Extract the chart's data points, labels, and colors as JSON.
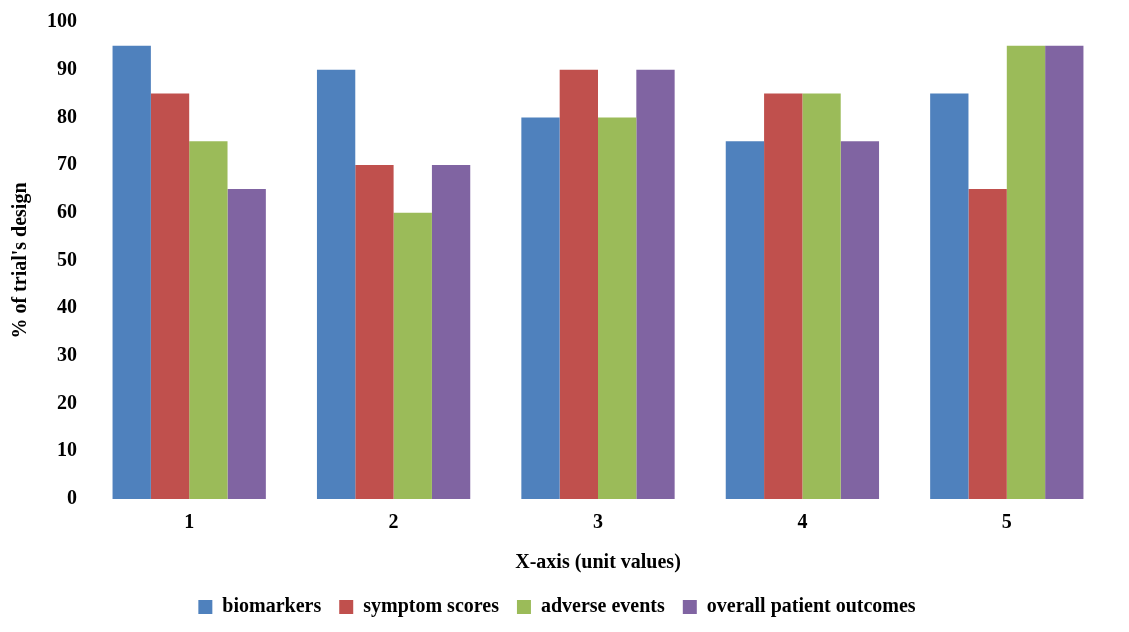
{
  "chart_data": {
    "type": "bar",
    "xlabel": "X-axis (unit values)",
    "ylabel": "% of trial's design",
    "categories": [
      "1",
      "2",
      "3",
      "4",
      "5"
    ],
    "series": [
      {
        "name": "biomarkers",
        "color": "#4f81bd",
        "values": [
          95,
          90,
          80,
          75,
          85
        ]
      },
      {
        "name": "symptom scores",
        "color": "#c0504d",
        "values": [
          85,
          70,
          90,
          85,
          65
        ]
      },
      {
        "name": "adverse events",
        "color": "#9bbb59",
        "values": [
          75,
          60,
          80,
          85,
          95
        ]
      },
      {
        "name": "overall patient outcomes",
        "color": "#8064a2",
        "values": [
          65,
          70,
          90,
          75,
          95
        ]
      }
    ],
    "ylim": [
      0,
      100
    ],
    "yticks": [
      0,
      10,
      20,
      30,
      40,
      50,
      60,
      70,
      80,
      90,
      100
    ],
    "grid": false,
    "legend": "bottom"
  }
}
